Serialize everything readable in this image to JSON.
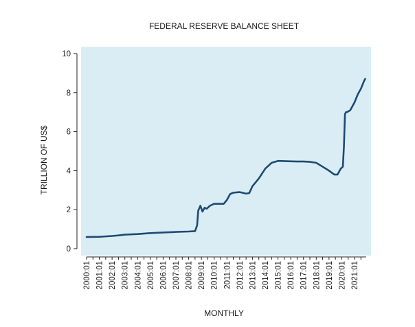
{
  "chart_data": {
    "type": "line",
    "title": "FEDERAL RESERVE BALANCE SHEET",
    "xlabel": "MONTHLY",
    "ylabel": "TRILLION OF US$",
    "ylim": [
      0,
      10
    ],
    "yticks": [
      0,
      2,
      4,
      6,
      8,
      10
    ],
    "xlim": [
      2000.0,
      2021.916
    ],
    "xtick_labels": [
      "2000:01",
      "2001:01",
      "2002:01",
      "2003:01",
      "2004:01",
      "2005:01",
      "2006:01",
      "2007:01",
      "2008:01",
      "2009:01",
      "2010:01",
      "2011:01",
      "2012:01",
      "2013:01",
      "2014:01",
      "2015:01",
      "2016:01",
      "2017:01",
      "2018:01",
      "2019:01",
      "2020:01",
      "2021:01"
    ],
    "grid": false,
    "colors": {
      "plot_background": "#daedf4",
      "line": "#1e4a72"
    },
    "series": [
      {
        "x": [
          "2000:01",
          "2001:01",
          "2002:01",
          "2002:07",
          "2003:01",
          "2004:01",
          "2005:01",
          "2006:01",
          "2007:01",
          "2008:01",
          "2008:07",
          "2008:09",
          "2008:10",
          "2008:12",
          "2009:02",
          "2009:04",
          "2009:06",
          "2009:09",
          "2010:01",
          "2010:07",
          "2010:10",
          "2011:01",
          "2011:04",
          "2011:07",
          "2012:01",
          "2012:07",
          "2012:10",
          "2013:01",
          "2013:07",
          "2014:01",
          "2014:07",
          "2015:01",
          "2016:01",
          "2016:07",
          "2017:01",
          "2017:07",
          "2018:01",
          "2018:07",
          "2019:01",
          "2019:06",
          "2019:09",
          "2019:12",
          "2020:02",
          "2020:03",
          "2020:04",
          "2020:05",
          "2020:06",
          "2020:09",
          "2021:01",
          "2021:04",
          "2021:07",
          "2021:10",
          "2021:11"
        ],
        "y": [
          0.6,
          0.61,
          0.65,
          0.68,
          0.72,
          0.75,
          0.8,
          0.83,
          0.86,
          0.88,
          0.9,
          1.2,
          1.95,
          2.2,
          1.9,
          2.1,
          2.05,
          2.2,
          2.3,
          2.3,
          2.3,
          2.5,
          2.8,
          2.87,
          2.9,
          2.82,
          2.85,
          3.2,
          3.6,
          4.1,
          4.4,
          4.5,
          4.48,
          4.47,
          4.47,
          4.45,
          4.4,
          4.2,
          4.0,
          3.8,
          3.8,
          4.1,
          4.2,
          5.2,
          6.9,
          7.0,
          7.0,
          7.1,
          7.5,
          7.9,
          8.2,
          8.6,
          8.7
        ]
      }
    ]
  }
}
